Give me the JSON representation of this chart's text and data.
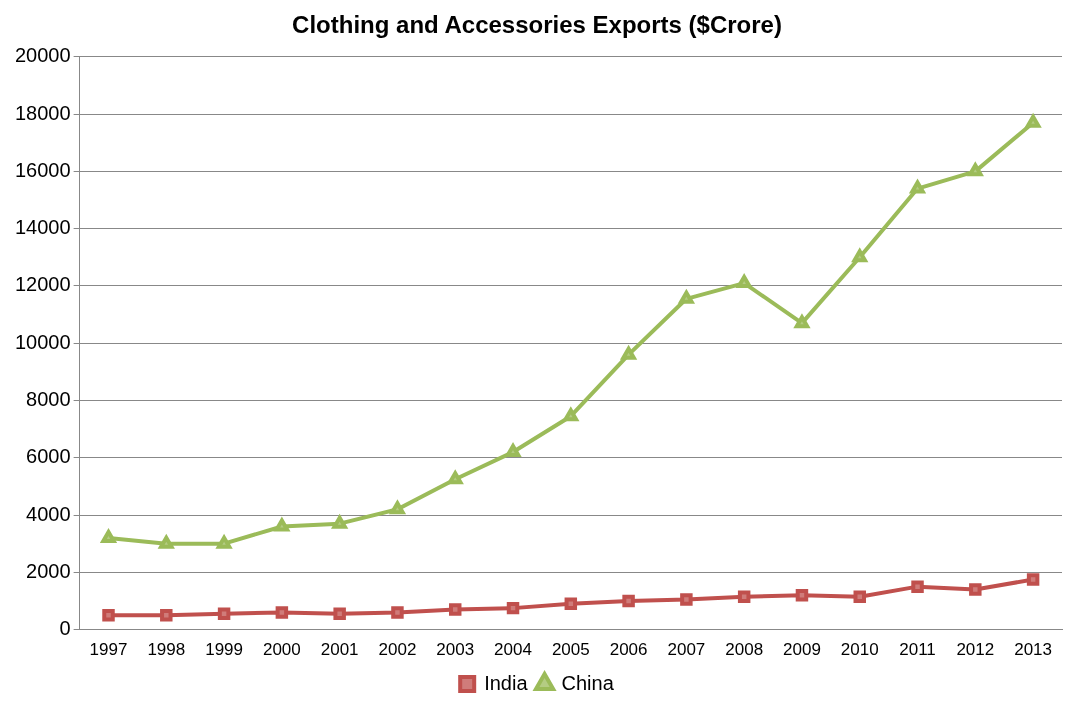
{
  "chart_data": {
    "type": "line",
    "title": "Clothing and Accessories Exports ($Crore)",
    "categories": [
      "1997",
      "1998",
      "1999",
      "2000",
      "2001",
      "2002",
      "2003",
      "2004",
      "2005",
      "2006",
      "2007",
      "2008",
      "2009",
      "2010",
      "2011",
      "2012",
      "2013"
    ],
    "series": [
      {
        "name": "India",
        "color": "#c0504d",
        "marker": "square",
        "values": [
          500,
          500,
          550,
          600,
          550,
          600,
          700,
          750,
          900,
          1000,
          1050,
          1150,
          1200,
          1150,
          1500,
          1400,
          1750
        ]
      },
      {
        "name": "China",
        "color": "#9bbb59",
        "marker": "triangle",
        "values": [
          3200,
          3000,
          3000,
          3600,
          3700,
          4200,
          5250,
          6200,
          7450,
          9600,
          11550,
          12100,
          10700,
          13000,
          15400,
          16000,
          17700
        ]
      }
    ],
    "ylim": [
      0,
      20000
    ],
    "yticks": [
      0,
      2000,
      4000,
      6000,
      8000,
      10000,
      12000,
      14000,
      16000,
      18000,
      20000
    ],
    "grid": "y",
    "legend": "bottom",
    "line_style": "solid"
  }
}
